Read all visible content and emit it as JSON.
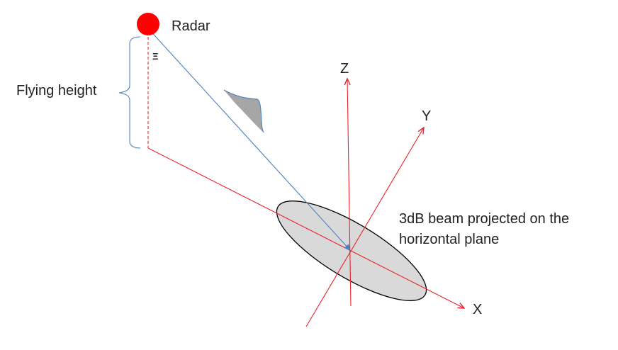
{
  "labels": {
    "radar": "Radar",
    "flying_height": "Flying height",
    "axis_z": "Z",
    "axis_y": "Y",
    "axis_x": "X",
    "beam_line1": "3dB beam projected on the",
    "beam_line2": "horizontal plane",
    "angle_symbol": "Ξ"
  },
  "colors": {
    "radar": "#ff0000",
    "axis": "#e8232a",
    "beam_line": "#4f81bd",
    "brace": "#4f81bd",
    "ellipse_fill": "#d9d9d9",
    "ellipse_stroke": "#000000",
    "beam_profile_fill": "#a6a6a6"
  }
}
